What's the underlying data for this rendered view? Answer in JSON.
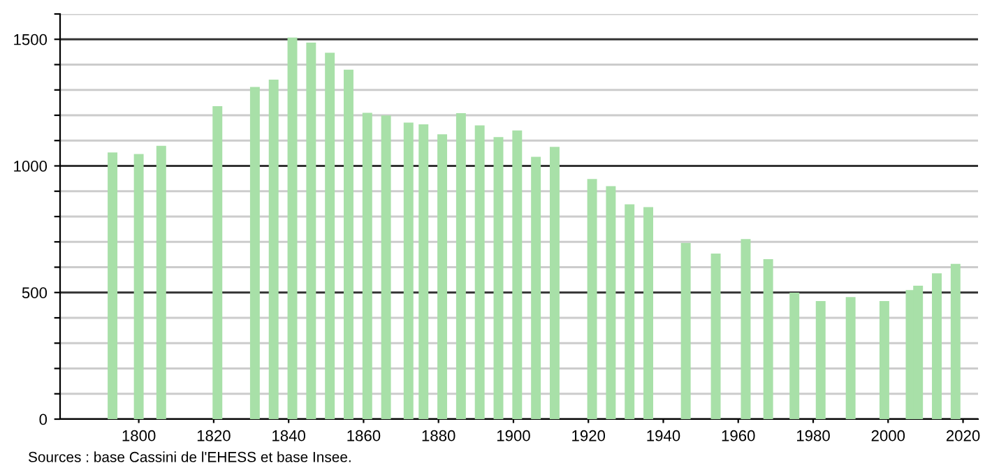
{
  "chart_data": {
    "type": "bar",
    "x": [
      1793,
      1800,
      1806,
      1821,
      1831,
      1836,
      1841,
      1846,
      1851,
      1856,
      1861,
      1866,
      1872,
      1876,
      1881,
      1886,
      1891,
      1896,
      1901,
      1906,
      1911,
      1921,
      1926,
      1931,
      1936,
      1946,
      1954,
      1962,
      1968,
      1975,
      1982,
      1990,
      1999,
      2006,
      2008,
      2013,
      2018
    ],
    "values": [
      1053,
      1047,
      1079,
      1236,
      1312,
      1341,
      1507,
      1487,
      1447,
      1380,
      1210,
      1199,
      1171,
      1164,
      1125,
      1208,
      1160,
      1114,
      1140,
      1036,
      1075,
      948,
      920,
      848,
      837,
      696,
      654,
      711,
      632,
      499,
      466,
      482,
      466,
      510,
      527,
      576,
      613
    ],
    "color": "#a8e0a8",
    "xlim": [
      1779,
      2024
    ],
    "xticks": [
      1800,
      1820,
      1840,
      1860,
      1880,
      1900,
      1920,
      1940,
      1960,
      1980,
      2000,
      2020
    ],
    "ylim": [
      0,
      1600
    ],
    "yticks": [
      0,
      {
        "value": 100,
        "label": null
      },
      {
        "value": 200,
        "label": null
      },
      {
        "value": 300,
        "label": null
      },
      {
        "value": 400,
        "label": null
      },
      500,
      {
        "value": 600,
        "label": null
      },
      {
        "value": 700,
        "label": null
      },
      {
        "value": 800,
        "label": null
      },
      {
        "value": 900,
        "label": null
      },
      1000,
      {
        "value": 1100,
        "label": null
      },
      {
        "value": 1200,
        "label": null
      },
      {
        "value": 1300,
        "label": null
      },
      {
        "value": 1400,
        "label": null
      },
      1500,
      {
        "value": 1600,
        "label": null
      }
    ],
    "grid": "y",
    "annotations": [
      "Sources : base Cassini de l'EHESS et base Insee."
    ]
  }
}
